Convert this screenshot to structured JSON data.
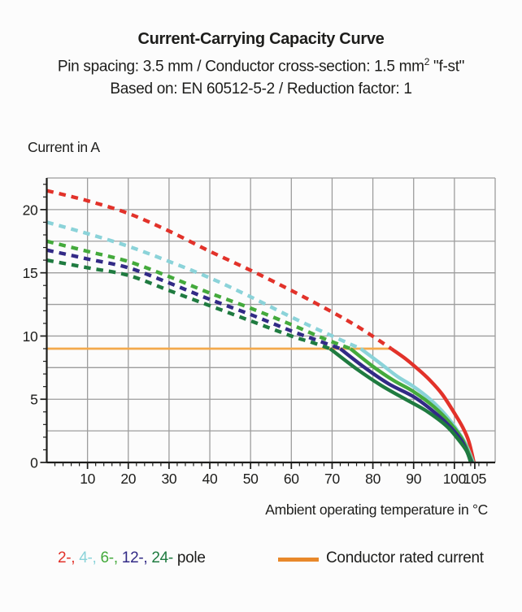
{
  "header": {
    "title": "Current-Carrying Capacity Curve",
    "subtitle1": {
      "pre": "Pin spacing: 3.5 mm / Conductor cross-section: 1.5 mm",
      "sup": "2",
      "post": " \"f-st\""
    },
    "subtitle2": "Based on: EN 60512-5-2 / Reduction factor: 1"
  },
  "chart_data": {
    "type": "line",
    "title": "Current-Carrying Capacity Curve",
    "ylabel": "Current in A",
    "xlabel": "Ambient operating temperature in °C",
    "xlim": [
      0,
      110
    ],
    "ylim": [
      0,
      22.5
    ],
    "x_major_ticks": [
      10,
      20,
      30,
      40,
      50,
      60,
      70,
      80,
      90,
      100,
      105
    ],
    "x_minor_step": 2,
    "y_major_ticks": [
      0,
      5,
      10,
      15,
      20
    ],
    "y_minor_step": 1,
    "grid": {
      "x_step": 10,
      "y_step": 2.5,
      "color": "#9d9d9d"
    },
    "axis_color": "#1d1d1b",
    "rated_current": {
      "label": "Conductor rated current",
      "value": 9,
      "x_extent": [
        0,
        84.5
      ],
      "line_color": "#f3a94c",
      "legend_color": "#e8882a"
    },
    "series": [
      {
        "name": "2-pole",
        "legend_label": "2-",
        "color": "#e2322a",
        "dashed": [
          [
            0,
            21.5
          ],
          [
            10,
            20.7
          ],
          [
            20,
            19.7
          ],
          [
            30,
            18.3
          ],
          [
            40,
            16.7
          ],
          [
            50,
            15.2
          ],
          [
            60,
            13.6
          ],
          [
            70,
            11.9
          ],
          [
            77,
            10.6
          ],
          [
            84.5,
            9.0
          ]
        ],
        "solid": [
          [
            84.5,
            9.0
          ],
          [
            88,
            8.2
          ],
          [
            91,
            7.4
          ],
          [
            94,
            6.5
          ],
          [
            97,
            5.4
          ],
          [
            100,
            3.9
          ],
          [
            102,
            2.8
          ],
          [
            103.5,
            1.7
          ],
          [
            104.8,
            0
          ]
        ]
      },
      {
        "name": "4-pole",
        "legend_label": "4-",
        "color": "#8bd3d9",
        "dashed": [
          [
            0,
            19.0
          ],
          [
            10,
            18.1
          ],
          [
            20,
            17.1
          ],
          [
            30,
            15.9
          ],
          [
            40,
            14.6
          ],
          [
            50,
            13.1
          ],
          [
            60,
            11.5
          ],
          [
            70,
            10.0
          ],
          [
            77,
            9.0
          ]
        ],
        "solid": [
          [
            77,
            9.0
          ],
          [
            82,
            7.8
          ],
          [
            86,
            6.8
          ],
          [
            90,
            6.0
          ],
          [
            94,
            5.0
          ],
          [
            98,
            3.7
          ],
          [
            101,
            2.4
          ],
          [
            103,
            1.3
          ],
          [
            104.6,
            0
          ]
        ]
      },
      {
        "name": "6-pole",
        "legend_label": "6-",
        "color": "#44aa3c",
        "dashed": [
          [
            0,
            17.5
          ],
          [
            10,
            16.7
          ],
          [
            20,
            15.9
          ],
          [
            30,
            14.7
          ],
          [
            40,
            13.4
          ],
          [
            50,
            12.2
          ],
          [
            60,
            10.9
          ],
          [
            68,
            9.8
          ],
          [
            74.5,
            9.0
          ]
        ],
        "solid": [
          [
            74.5,
            9.0
          ],
          [
            80,
            7.6
          ],
          [
            85,
            6.5
          ],
          [
            90,
            5.6
          ],
          [
            95,
            4.4
          ],
          [
            99,
            3.1
          ],
          [
            102,
            1.8
          ],
          [
            104.4,
            0
          ]
        ]
      },
      {
        "name": "12-pole",
        "legend_label": "12-",
        "color": "#322a86",
        "dashed": [
          [
            0,
            16.8
          ],
          [
            10,
            16.1
          ],
          [
            20,
            15.4
          ],
          [
            30,
            14.2
          ],
          [
            40,
            12.9
          ],
          [
            50,
            11.7
          ],
          [
            60,
            10.4
          ],
          [
            66,
            9.7
          ],
          [
            72,
            9.0
          ]
        ],
        "solid": [
          [
            72,
            9.0
          ],
          [
            78,
            7.5
          ],
          [
            84,
            6.2
          ],
          [
            90,
            5.2
          ],
          [
            95,
            4.0
          ],
          [
            99,
            2.8
          ],
          [
            102,
            1.6
          ],
          [
            104.2,
            0
          ]
        ]
      },
      {
        "name": "24-pole",
        "legend_label": "24-",
        "color": "#1f7b40",
        "dashed": [
          [
            0,
            16.0
          ],
          [
            10,
            15.4
          ],
          [
            20,
            14.8
          ],
          [
            30,
            13.6
          ],
          [
            40,
            12.4
          ],
          [
            50,
            11.2
          ],
          [
            60,
            10.0
          ],
          [
            65,
            9.5
          ],
          [
            69.5,
            9.0
          ]
        ],
        "solid": [
          [
            69.5,
            9.0
          ],
          [
            76,
            7.4
          ],
          [
            82,
            6.1
          ],
          [
            88,
            5.0
          ],
          [
            93,
            4.1
          ],
          [
            98,
            2.9
          ],
          [
            101,
            1.8
          ],
          [
            103,
            0.9
          ],
          [
            104,
            0
          ]
        ]
      }
    ]
  },
  "legend": {
    "pole_suffix": " pole",
    "rated_label": "Conductor rated current"
  }
}
